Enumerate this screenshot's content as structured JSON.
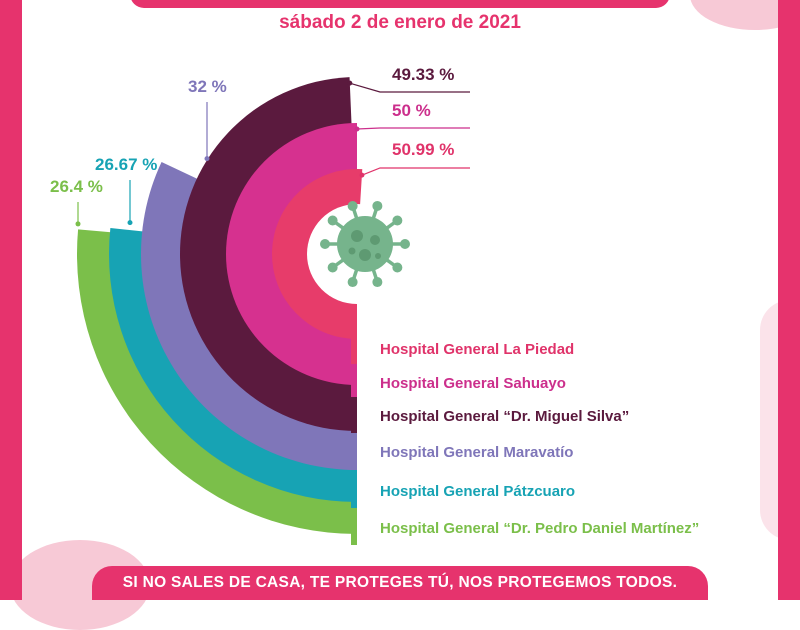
{
  "header": {
    "date": "sábado 2 de enero de 2021"
  },
  "footer": {
    "slogan": "SI NO SALES DE CASA, TE PROTEGES TÚ, NOS PROTEGEMOS TODOS."
  },
  "icon": {
    "name": "virus-icon",
    "color": "#76b48c"
  },
  "colors": {
    "accent": "#e6336d",
    "frame": "#e6336d"
  },
  "chart_data": {
    "type": "radial-bar",
    "categories": [
      "Hospital General La Piedad",
      "Hospital General Sahuayo",
      "Hospital General “Dr. Miguel Silva”",
      "Hospital General Maravatío",
      "Hospital General Pátzcuaro",
      "Hospital General “Dr. Pedro Daniel Martínez”"
    ],
    "values": [
      50.99,
      50,
      49.33,
      32,
      26.67,
      26.4
    ],
    "labels": [
      "50.99 %",
      "50 %",
      "49.33 %",
      "32 %",
      "26.67 %",
      "26.4 %"
    ],
    "colors": [
      "#e73c6a",
      "#d6318f",
      "#5b1a3e",
      "#7f76b9",
      "#17a3b4",
      "#7bbf4a"
    ],
    "text_colors": [
      "#e0336a",
      "#cc2f8c",
      "#5b1a3e",
      "#7f76b9",
      "#17a3b4",
      "#7bbf4a"
    ]
  }
}
